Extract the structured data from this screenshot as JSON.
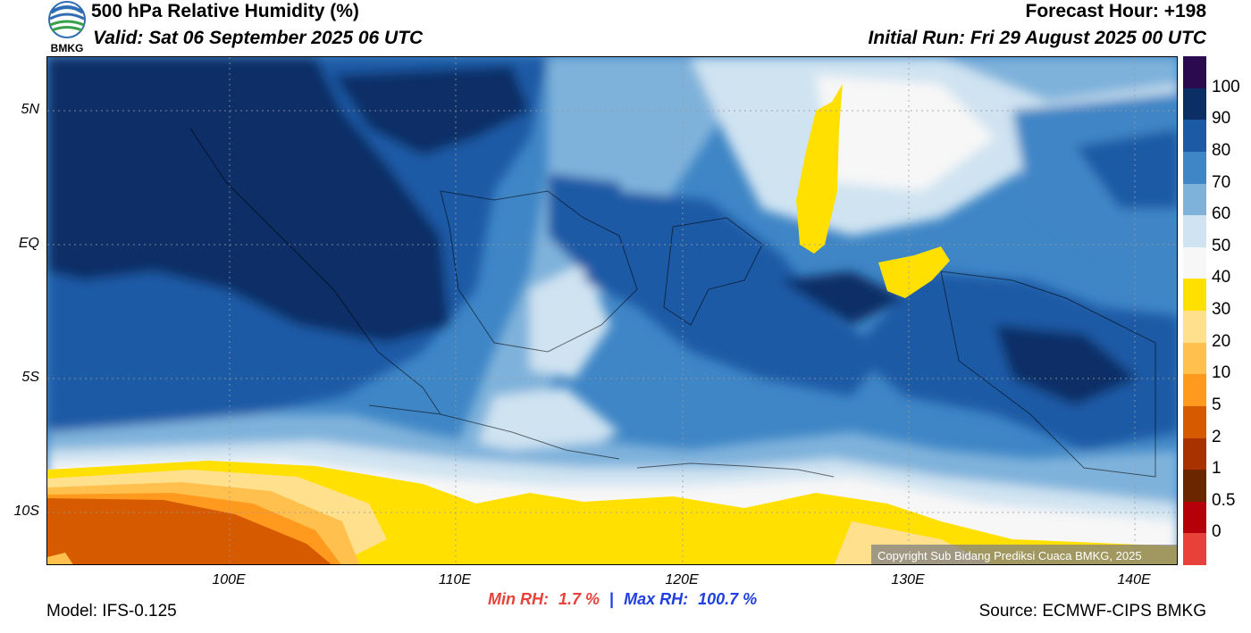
{
  "header": {
    "title": "500 hPa Relative Humidity (%)",
    "valid": "Valid: Sat 06 September 2025 06 UTC",
    "forecast_hour": "Forecast Hour: +198",
    "initial_run": "Initial Run: Fri 29 August 2025 00 UTC",
    "logo_text": "BMKG"
  },
  "map": {
    "lat_labels": [
      "5N",
      "EQ",
      "5S",
      "10S"
    ],
    "lon_labels": [
      "100E",
      "110E",
      "120E",
      "130E",
      "140E"
    ],
    "copyright": "Copyright Sub Bidang Prediksi Cuaca BMKG, 2025"
  },
  "colorbar": {
    "labels": [
      "100",
      "90",
      "80",
      "70",
      "60",
      "50",
      "40",
      "30",
      "20",
      "10",
      "5",
      "2",
      "1",
      "0.5",
      "0"
    ],
    "colors": [
      "#2b0a4f",
      "#0b2e66",
      "#1d5aa6",
      "#3f86c6",
      "#7fb2db",
      "#cfe3f1",
      "#f7f7f7",
      "#ffe000",
      "#ffe08c",
      "#ffc04d",
      "#ff9a1f",
      "#d65a00",
      "#a83200",
      "#6b2600",
      "#b5000a",
      "#e8413a"
    ]
  },
  "stats": {
    "min_label": "Min RH:",
    "min_value": "1.7 %",
    "separator": "|",
    "max_label": "Max RH:",
    "max_value": "100.7 %",
    "min_color": "#e8413a",
    "max_color": "#1f3fe0"
  },
  "footer": {
    "model": "Model: IFS-0.125",
    "source": "Source: ECMWF-CIPS BMKG"
  }
}
